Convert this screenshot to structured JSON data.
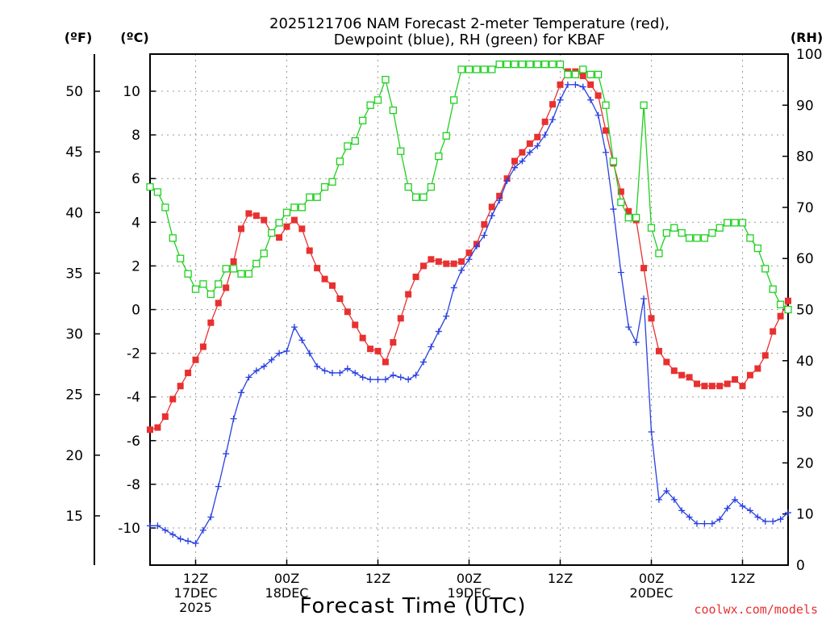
{
  "chart_data": {
    "type": "line",
    "title_line1": "2025121706 NAM Forecast 2-meter Temperature (red),",
    "title_line2": "Dewpoint (blue), RH (green) for KBAF",
    "xlabel": "Forecast Time (UTC)",
    "axis_units": {
      "fahrenheit": "(ºF)",
      "celsius": "(ºC)",
      "rh": "(RH)"
    },
    "watermark": "coolwx.com/models",
    "x_range_hours": [
      0,
      84
    ],
    "celsius_range": [
      -11.7,
      11.7
    ],
    "rh_range": [
      0,
      100
    ],
    "celsius_ticks": [
      -10,
      -8,
      -6,
      -4,
      -2,
      0,
      2,
      4,
      6,
      8,
      10
    ],
    "fahrenheit_ticks": [
      15,
      20,
      25,
      30,
      35,
      40,
      45,
      50
    ],
    "rh_ticks": [
      0,
      10,
      20,
      30,
      40,
      50,
      60,
      70,
      80,
      90,
      100
    ],
    "x_ticks": [
      {
        "hour": 6,
        "lines": [
          "12Z",
          "17DEC",
          "2025"
        ]
      },
      {
        "hour": 18,
        "lines": [
          "00Z",
          "18DEC"
        ]
      },
      {
        "hour": 30,
        "lines": [
          "12Z",
          ""
        ]
      },
      {
        "hour": 42,
        "lines": [
          "00Z",
          "19DEC"
        ]
      },
      {
        "hour": 54,
        "lines": [
          "12Z",
          ""
        ]
      },
      {
        "hour": 66,
        "lines": [
          "00Z",
          "20DEC"
        ]
      },
      {
        "hour": 78,
        "lines": [
          "12Z",
          ""
        ]
      }
    ],
    "grid": true,
    "colors": {
      "temperature": "#e83030",
      "dewpoint": "#2840e0",
      "rh": "#20d020"
    },
    "series": [
      {
        "name": "Temperature (red)",
        "unit": "C",
        "marker": "filled-square",
        "x": [
          0,
          1,
          2,
          3,
          4,
          5,
          6,
          7,
          8,
          9,
          10,
          11,
          12,
          13,
          14,
          15,
          16,
          17,
          18,
          19,
          20,
          21,
          22,
          23,
          24,
          25,
          26,
          27,
          28,
          29,
          30,
          31,
          32,
          33,
          34,
          35,
          36,
          37,
          38,
          39,
          40,
          41,
          42,
          43,
          44,
          45,
          46,
          47,
          48,
          49,
          50,
          51,
          52,
          53,
          54,
          55,
          56,
          57,
          58,
          59,
          60,
          61,
          62,
          63,
          64,
          65,
          66,
          67,
          68,
          69,
          70,
          71,
          72,
          73,
          74,
          75,
          76,
          77,
          78,
          79,
          80,
          81,
          82,
          83,
          84
        ],
        "values": [
          -5.5,
          -5.4,
          -4.9,
          -4.1,
          -3.5,
          -2.9,
          -2.3,
          -1.7,
          -0.6,
          0.3,
          1.0,
          2.2,
          3.7,
          4.4,
          4.3,
          4.1,
          3.5,
          3.3,
          3.8,
          4.1,
          3.7,
          2.7,
          1.9,
          1.4,
          1.1,
          0.5,
          -0.1,
          -0.7,
          -1.3,
          -1.8,
          -1.9,
          -2.4,
          -1.5,
          -0.4,
          0.7,
          1.5,
          2.0,
          2.3,
          2.2,
          2.1,
          2.1,
          2.2,
          2.6,
          3.0,
          3.9,
          4.7,
          5.2,
          6.0,
          6.8,
          7.2,
          7.6,
          7.9,
          8.6,
          9.4,
          10.3,
          10.9,
          10.9,
          10.7,
          10.3,
          9.8,
          8.2,
          6.7,
          5.4,
          4.5,
          4.1,
          1.9,
          -0.4,
          -1.9,
          -2.4,
          -2.8,
          -3.0,
          -3.1,
          -3.4,
          -3.5,
          -3.5,
          -3.5,
          -3.4,
          -3.2,
          -3.5,
          -3.0,
          -2.7,
          -2.1,
          -1.0,
          -0.3,
          0.4
        ]
      },
      {
        "name": "Dewpoint (blue)",
        "unit": "C",
        "marker": "plus",
        "x": [
          0,
          1,
          2,
          3,
          4,
          5,
          6,
          7,
          8,
          9,
          10,
          11,
          12,
          13,
          14,
          15,
          16,
          17,
          18,
          19,
          20,
          21,
          22,
          23,
          24,
          25,
          26,
          27,
          28,
          29,
          30,
          31,
          32,
          33,
          34,
          35,
          36,
          37,
          38,
          39,
          40,
          41,
          42,
          43,
          44,
          45,
          46,
          47,
          48,
          49,
          50,
          51,
          52,
          53,
          54,
          55,
          56,
          57,
          58,
          59,
          60,
          61,
          62,
          63,
          64,
          65,
          66,
          67,
          68,
          69,
          70,
          71,
          72,
          73,
          74,
          75,
          76,
          77,
          78,
          79,
          80,
          81,
          82,
          83,
          84
        ],
        "values": [
          -9.9,
          -9.9,
          -10.1,
          -10.3,
          -10.5,
          -10.6,
          -10.7,
          -10.1,
          -9.5,
          -8.1,
          -6.6,
          -5.0,
          -3.8,
          -3.1,
          -2.8,
          -2.6,
          -2.3,
          -2.0,
          -1.9,
          -0.8,
          -1.4,
          -2.0,
          -2.6,
          -2.8,
          -2.9,
          -2.9,
          -2.7,
          -2.9,
          -3.1,
          -3.2,
          -3.2,
          -3.2,
          -3.0,
          -3.1,
          -3.2,
          -3.0,
          -2.4,
          -1.7,
          -1.0,
          -0.3,
          1.0,
          1.8,
          2.3,
          2.9,
          3.4,
          4.3,
          5.0,
          5.9,
          6.5,
          6.8,
          7.2,
          7.5,
          8.0,
          8.7,
          9.6,
          10.3,
          10.3,
          10.2,
          9.6,
          8.9,
          7.2,
          4.6,
          1.7,
          -0.8,
          -1.5,
          0.5,
          -5.6,
          -8.7,
          -8.3,
          -8.7,
          -9.2,
          -9.5,
          -9.8,
          -9.8,
          -9.8,
          -9.6,
          -9.1,
          -8.7,
          -9.0,
          -9.2,
          -9.5,
          -9.7,
          -9.7,
          -9.6,
          -9.3
        ]
      },
      {
        "name": "RH (green)",
        "unit": "%",
        "marker": "open-square",
        "x": [
          0,
          1,
          2,
          3,
          4,
          5,
          6,
          7,
          8,
          9,
          10,
          11,
          12,
          13,
          14,
          15,
          16,
          17,
          18,
          19,
          20,
          21,
          22,
          23,
          24,
          25,
          26,
          27,
          28,
          29,
          30,
          31,
          32,
          33,
          34,
          35,
          36,
          37,
          38,
          39,
          40,
          41,
          42,
          43,
          44,
          45,
          46,
          47,
          48,
          49,
          50,
          51,
          52,
          53,
          54,
          55,
          56,
          57,
          58,
          59,
          60,
          61,
          62,
          63,
          64,
          65,
          66,
          67,
          68,
          69,
          70,
          71,
          72,
          73,
          74,
          75,
          76,
          77,
          78,
          79,
          80,
          81,
          82,
          83,
          84
        ],
        "values": [
          74,
          73,
          70,
          64,
          60,
          57,
          54,
          55,
          53,
          55,
          58,
          58,
          57,
          57,
          59,
          61,
          65,
          67,
          69,
          70,
          70,
          72,
          72,
          74,
          75,
          79,
          82,
          83,
          87,
          90,
          91,
          95,
          89,
          81,
          74,
          72,
          72,
          74,
          80,
          84,
          91,
          97,
          97,
          97,
          97,
          97,
          98,
          98,
          98,
          98,
          98,
          98,
          98,
          98,
          98,
          96,
          96,
          97,
          96,
          96,
          90,
          79,
          71,
          68,
          68,
          90,
          66,
          61,
          65,
          66,
          65,
          64,
          64,
          64,
          65,
          66,
          67,
          67,
          67,
          64,
          62,
          58,
          54,
          51,
          50
        ]
      }
    ]
  }
}
